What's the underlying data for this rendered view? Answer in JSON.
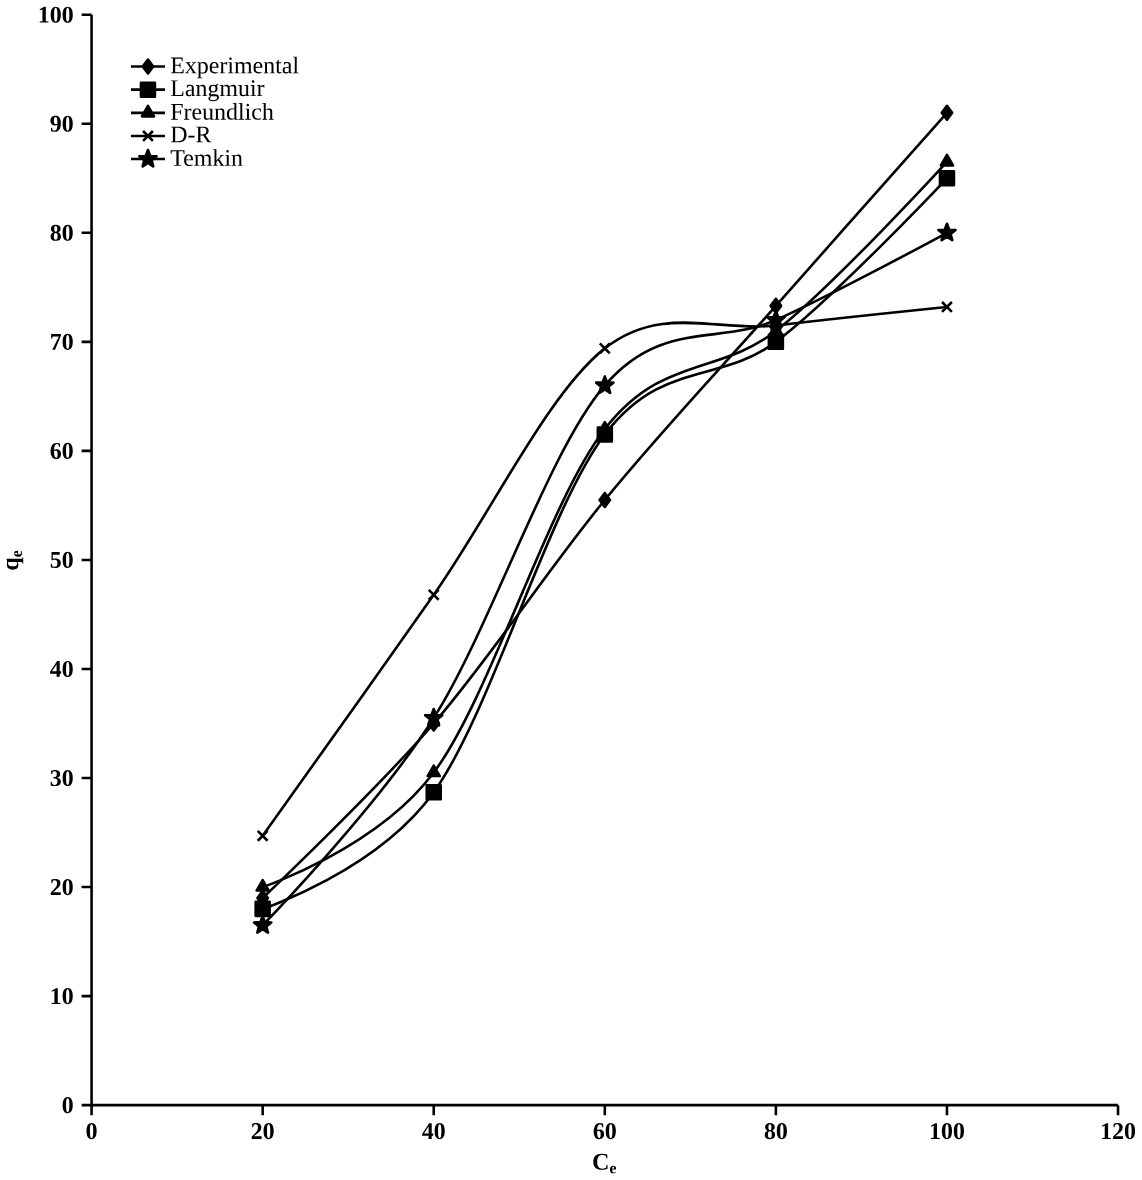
{
  "chart_data": {
    "type": "line",
    "xlabel": "C$_{e}$",
    "ylabel": "q$_{e}$",
    "x": [
      20,
      40,
      60,
      80,
      100
    ],
    "series": [
      {
        "name": "Experimental",
        "color": "#000000",
        "marker": "diamond",
        "values": [
          19,
          35,
          55.5,
          73.3,
          91
        ]
      },
      {
        "name": "Langmuir",
        "color": "#000000",
        "marker": "square",
        "values": [
          18,
          28.7,
          61.5,
          70,
          85
        ]
      },
      {
        "name": "Freundlich",
        "color": "#000000",
        "marker": "triangle",
        "values": [
          20,
          30.5,
          62,
          71,
          86.5
        ]
      },
      {
        "name": "D-R",
        "color": "#000000",
        "marker": "cross",
        "values": [
          24.7,
          46.8,
          69.4,
          71.5,
          73.2
        ]
      },
      {
        "name": "Temkin",
        "color": "#000000",
        "marker": "star",
        "values": [
          16.5,
          35.5,
          66,
          72,
          80
        ]
      }
    ],
    "xlim": [
      0,
      120
    ],
    "xticks": [
      0,
      20,
      40,
      60,
      80,
      100,
      120
    ],
    "ylim": [
      0,
      100
    ],
    "yticks": [
      0,
      10,
      20,
      30,
      40,
      50,
      60,
      70,
      80,
      90,
      100
    ],
    "grid": false,
    "legend": "top left",
    "line_style": "solid"
  }
}
